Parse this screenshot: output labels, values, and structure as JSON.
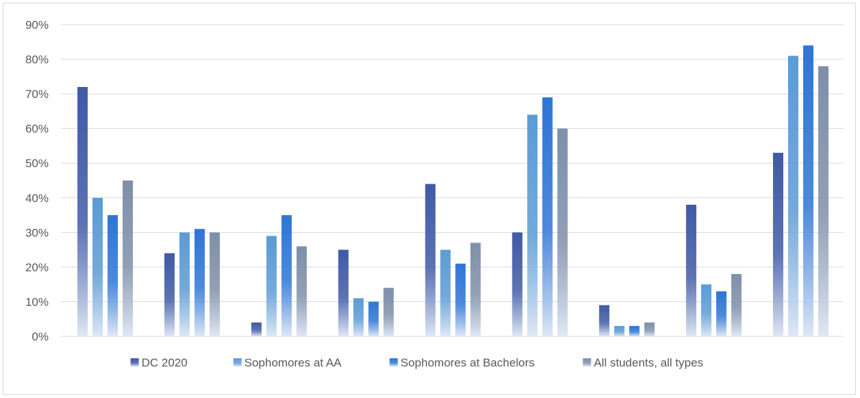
{
  "chart_data": {
    "type": "bar",
    "categories": [
      "",
      "",
      "",
      "",
      "",
      "",
      "",
      "",
      ""
    ],
    "series": [
      {
        "name": "DC 2020",
        "color": "#3f5aa6",
        "values": [
          72,
          24,
          4,
          25,
          44,
          30,
          9,
          38,
          53
        ]
      },
      {
        "name": "Sophomores at AA",
        "color": "#5b9bd5",
        "values": [
          40,
          30,
          29,
          11,
          25,
          64,
          3,
          15,
          81
        ]
      },
      {
        "name": "Sophomores at Bachelors",
        "color": "#2e75d6",
        "values": [
          35,
          31,
          35,
          10,
          21,
          69,
          3,
          13,
          84
        ]
      },
      {
        "name": "All students, all types",
        "color": "#7f8fa9",
        "values": [
          45,
          30,
          26,
          14,
          27,
          60,
          4,
          18,
          78
        ]
      }
    ],
    "ylim": [
      0,
      90
    ],
    "yticks": [
      "0%",
      "10%",
      "20%",
      "30%",
      "40%",
      "50%",
      "60%",
      "70%",
      "80%",
      "90%"
    ],
    "grid": true,
    "legend_position": "bottom",
    "title": "",
    "xlabel": "",
    "ylabel": ""
  }
}
